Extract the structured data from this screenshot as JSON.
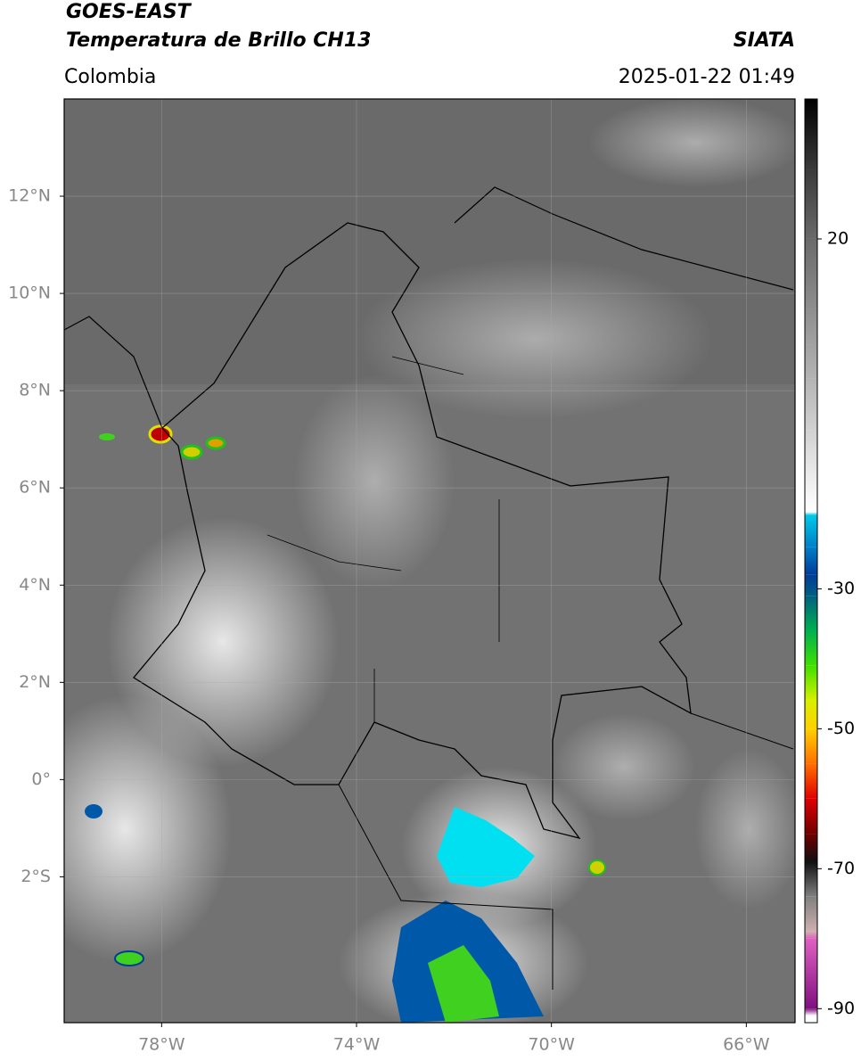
{
  "header": {
    "satellite": "GOES-EAST",
    "product": "Temperatura de Brillo CH13",
    "agency": "SIATA",
    "region": "Colombia",
    "datetime": "2025-01-22 01:49"
  },
  "map": {
    "xlim": [
      -80,
      -65
    ],
    "ylim": [
      -5,
      14
    ],
    "xticks": [
      {
        "value": -78,
        "label": "78°W"
      },
      {
        "value": -74,
        "label": "74°W"
      },
      {
        "value": -70,
        "label": "70°W"
      },
      {
        "value": -66,
        "label": "66°W"
      }
    ],
    "yticks": [
      {
        "value": 12,
        "label": "12°N"
      },
      {
        "value": 10,
        "label": "10°N"
      },
      {
        "value": 8,
        "label": "8°N"
      },
      {
        "value": 6,
        "label": "6°N"
      },
      {
        "value": 4,
        "label": "4°N"
      },
      {
        "value": 2,
        "label": "2°N"
      },
      {
        "value": 0,
        "label": "0°"
      },
      {
        "value": -2,
        "label": "2°S"
      }
    ],
    "grid": true
  },
  "colorbar": {
    "lim": [
      -92,
      40
    ],
    "ticks": [
      20,
      -30,
      -50,
      -70,
      -90
    ],
    "stops": [
      {
        "value": 40,
        "color": "#000000"
      },
      {
        "value": 30,
        "color": "#3a3a3a"
      },
      {
        "value": 20,
        "color": "#6a6a6a"
      },
      {
        "value": 10,
        "color": "#8e8e8e"
      },
      {
        "value": 0,
        "color": "#b4b4b4"
      },
      {
        "value": -10,
        "color": "#dcdcdc"
      },
      {
        "value": -19,
        "color": "#ffffff"
      },
      {
        "value": -19.5,
        "color": "#00c8e8"
      },
      {
        "value": -24,
        "color": "#0080c8"
      },
      {
        "value": -28,
        "color": "#003c98"
      },
      {
        "value": -31,
        "color": "#006080"
      },
      {
        "value": -36,
        "color": "#00b050"
      },
      {
        "value": -41,
        "color": "#40e000"
      },
      {
        "value": -46,
        "color": "#d8f000"
      },
      {
        "value": -50,
        "color": "#ffd000"
      },
      {
        "value": -55,
        "color": "#ff7000"
      },
      {
        "value": -60,
        "color": "#e00000"
      },
      {
        "value": -65,
        "color": "#700000"
      },
      {
        "value": -69,
        "color": "#101010"
      },
      {
        "value": -74,
        "color": "#808080"
      },
      {
        "value": -79,
        "color": "#d0b0b0"
      },
      {
        "value": -80,
        "color": "#e060c0"
      },
      {
        "value": -90,
        "color": "#801080"
      },
      {
        "value": -91,
        "color": "#ffffff"
      }
    ]
  }
}
